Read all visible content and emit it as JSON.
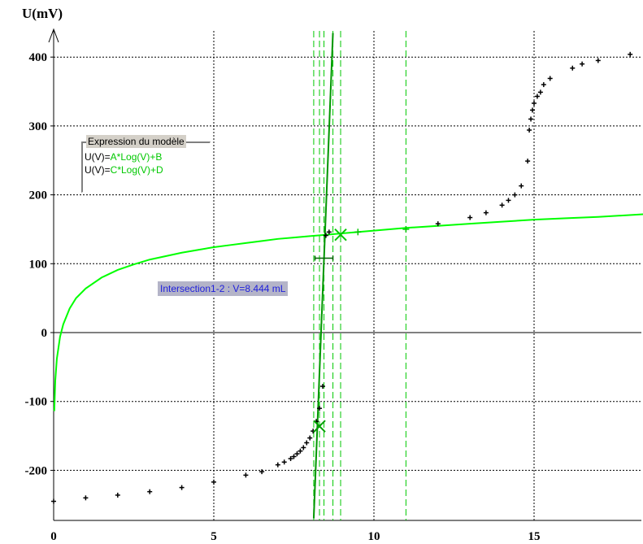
{
  "chart_data": {
    "type": "scatter",
    "ylabel": "U(mV)",
    "xlabel": "",
    "xlim": [
      0,
      18.5
    ],
    "ylim": [
      -270,
      435
    ],
    "x_ticks": [
      0,
      5,
      10,
      15
    ],
    "x_tick_labels": [
      "0",
      "5",
      "10",
      "15"
    ],
    "y_ticks": [
      -200,
      -100,
      0,
      100,
      200,
      300,
      400
    ],
    "y_tick_labels": [
      "-200",
      "-100",
      "0",
      "100",
      "200",
      "300",
      "400"
    ],
    "grid": true,
    "series": [
      {
        "kind": "points",
        "color": "#000000",
        "x": [
          0,
          1,
          2,
          3,
          4,
          5,
          6,
          6.5,
          7,
          7.2,
          7.4,
          7.5,
          7.6,
          7.7,
          7.8,
          7.9,
          8.0,
          8.1,
          8.2,
          8.3,
          8.4,
          8.5,
          8.6,
          12,
          13,
          13.5,
          14,
          14.2,
          14.4,
          14.6,
          14.8,
          14.85,
          14.9,
          14.95,
          15.0,
          15.1,
          15.2,
          15.3,
          15.5,
          16.2,
          16.5,
          17,
          18
        ],
        "y": [
          -245,
          -240,
          -236,
          -231,
          -225,
          -217,
          -207,
          -202,
          -192,
          -188,
          -183,
          -180,
          -176,
          -172,
          -167,
          -160,
          -153,
          -143,
          -129,
          -110,
          -78,
          141,
          146,
          158,
          167,
          174,
          185,
          192,
          200,
          213,
          249,
          294,
          310,
          323,
          333,
          343,
          349,
          360,
          369,
          384,
          390,
          395,
          404
        ]
      },
      {
        "kind": "model-curve",
        "color": "#00ff00",
        "x": [
          0.02,
          0.05,
          0.1,
          0.2,
          0.3,
          0.5,
          0.7,
          1,
          1.5,
          2,
          2.5,
          3,
          3.5,
          4,
          4.5,
          5,
          5.5,
          6,
          6.5,
          7,
          7.5,
          8,
          8.5,
          9,
          10,
          11,
          12,
          13,
          14,
          15,
          16,
          17,
          18.5
        ],
        "y": [
          -114,
          -70,
          -38,
          -6,
          12,
          35,
          50,
          64,
          80,
          91,
          99,
          106,
          111,
          116,
          120,
          124,
          127,
          130,
          133,
          136,
          138,
          140,
          142,
          144,
          148,
          152,
          155,
          158,
          161,
          164,
          166,
          168,
          172
        ]
      },
      {
        "kind": "model-line",
        "color": "#009600",
        "x": [
          8.12,
          8.72
        ],
        "y": [
          -270,
          435
        ]
      }
    ],
    "vertical_markers": {
      "color": "#00c800",
      "x": [
        8.12,
        8.3,
        8.44,
        8.72,
        8.96,
        11.0
      ]
    },
    "markers": [
      {
        "x": 8.96,
        "y": 142,
        "symbol": "x",
        "color": "#00c800"
      },
      {
        "x": 8.3,
        "y": -136,
        "symbol": "x",
        "color": "#00a000"
      },
      {
        "x": 9.5,
        "y": 146,
        "symbol": "+",
        "color": "#00c800"
      },
      {
        "x": 11.0,
        "y": 150,
        "symbol": "+",
        "color": "#00c800"
      },
      {
        "x": 8.44,
        "y": 108,
        "symbol": "errbar",
        "color": "#006400"
      }
    ]
  },
  "legend": {
    "title": "Expression du modèle",
    "line1_lhs": "U(V)=",
    "line1_rhs": "A*Log(V)+B",
    "line2_lhs": "U(V)=",
    "line2_rhs": "C*Log(V)+D"
  },
  "intersection_label": "Intersection1-2 : V=8.444 mL"
}
